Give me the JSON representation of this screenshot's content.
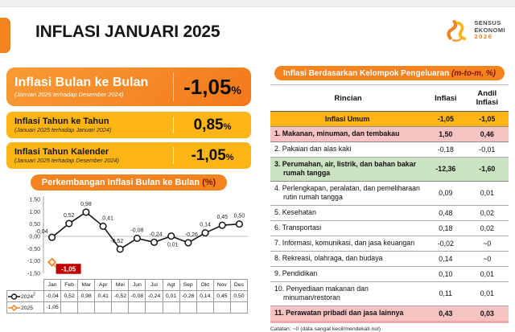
{
  "header": {
    "title": "INFLASI JANUARI 2025",
    "logo": {
      "line1": "SENSUS",
      "line2": "EKONOMI",
      "line3": "2026"
    }
  },
  "colors": {
    "accent_orange": "#F5831F",
    "accent_yellow": "#FDB515",
    "maroon_text": "#7E1416",
    "annotation_red": "#C00000",
    "row_pink": "#F6C2C2",
    "row_green": "#CBE3C3"
  },
  "summary_boxes": [
    {
      "title": "Inflasi Bulan ke Bulan",
      "subtitle": "(Januari 2025 terhadap Desember 2024)",
      "value": "-1,05",
      "unit": "%"
    },
    {
      "title": "Inflasi Tahun ke Tahun",
      "subtitle": "(Januari 2025 terhadap Januari 2024)",
      "value": "0,85",
      "unit": "%"
    },
    {
      "title": "Inflasi Tahun Kalender",
      "subtitle": "(Januari 2025 terhadap Desember 2024)",
      "value": "-1,05",
      "unit": "%"
    }
  ],
  "chart": {
    "title_main": "Perkembangan Inflasi Bulan ke Bulan",
    "title_unit": "(%)"
  },
  "chart_data": {
    "type": "line",
    "title": "Perkembangan Inflasi Bulan ke Bulan (%)",
    "categories": [
      "Jan",
      "Feb",
      "Mar",
      "Apr",
      "Mei",
      "Jun",
      "Jul",
      "Agt",
      "Sep",
      "Okt",
      "Nov",
      "Des"
    ],
    "series": [
      {
        "name": "2024",
        "name_sup": "2",
        "color": "#141414",
        "marker": "circle",
        "values": [
          -0.04,
          0.52,
          0.98,
          0.41,
          -0.52,
          -0.08,
          -0.24,
          0.01,
          -0.26,
          0.14,
          0.45,
          0.5
        ],
        "labels": [
          "-0,04",
          "0,52",
          "0,98",
          "0,41",
          "-0,52",
          "-0,08",
          "-0,24",
          "0,01",
          "-0,26",
          "0,14",
          "0,45",
          "0,50"
        ],
        "label_offsets": [
          [
            -5,
            -5,
            "end"
          ],
          [
            0,
            -8,
            "middle"
          ],
          [
            0,
            -8,
            "middle"
          ],
          [
            6,
            -8,
            "middle"
          ],
          [
            -4,
            -8,
            "middle"
          ],
          [
            0,
            -8,
            "middle"
          ],
          [
            2,
            -8,
            "middle"
          ],
          [
            2,
            13,
            "middle"
          ],
          [
            4,
            -8,
            "middle"
          ],
          [
            0,
            -8,
            "middle"
          ],
          [
            0,
            -8,
            "middle"
          ],
          [
            0,
            -8,
            "middle"
          ]
        ]
      },
      {
        "name": "2025",
        "name_sup": "",
        "color": "#E8821E",
        "marker": "diamond",
        "values": [
          -1.05,
          null,
          null,
          null,
          null,
          null,
          null,
          null,
          null,
          null,
          null,
          null
        ],
        "labels": [
          "-1,05",
          "",
          "",
          "",
          "",
          "",
          "",
          "",
          "",
          "",
          "",
          ""
        ],
        "label_offsets": []
      }
    ],
    "ylim": [
      -1.5,
      1.5
    ],
    "yticks": [
      "1,50",
      "1,00",
      "0,50",
      "0,00",
      "-0,50",
      "-1,00",
      "-1,50"
    ],
    "grid": "zero-line-only",
    "legend_position": "bottom-table",
    "annotation": {
      "text": "-1,05",
      "bg": "#C00000",
      "color": "#ffffff",
      "series": "2025",
      "index": 0
    }
  },
  "expenditure_table": {
    "title_main": "Inflasi Berdasarkan Kelompok Pengeluaran",
    "title_unit": "(m-to-m, %)",
    "columns": [
      "Rincian",
      "Inflasi",
      "Andil Inflasi"
    ],
    "summary_row": {
      "label": "Inflasi Umum",
      "inflasi": "-1,05",
      "andil": "-1,05"
    },
    "rows": [
      {
        "label": "1. Makanan, minuman, dan tembakau",
        "inflasi": "1,50",
        "andil": "0,46",
        "highlight": "pink"
      },
      {
        "label": "2. Pakaian dan alas kaki",
        "inflasi": "-0,18",
        "andil": "-0,01",
        "highlight": ""
      },
      {
        "label": "3. Perumahan, air, listrik, dan bahan bakar rumah tangga",
        "inflasi": "-12,36",
        "andil": "-1,60",
        "highlight": "green"
      },
      {
        "label": "4. Perlengkapan, peralatan, dan pemeliharaan rutin rumah tangga",
        "inflasi": "0,09",
        "andil": "0,01",
        "highlight": ""
      },
      {
        "label": "5. Kesehatan",
        "inflasi": "0,48",
        "andil": "0,02",
        "highlight": ""
      },
      {
        "label": "6. Transportasi",
        "inflasi": "0,18",
        "andil": "0,02",
        "highlight": ""
      },
      {
        "label": "7. Informasi, komunikasi, dan jasa keuangan",
        "inflasi": "-0,02",
        "andil": "~0",
        "highlight": ""
      },
      {
        "label": "8. Rekreasi, olahraga, dan budaya",
        "inflasi": "0,14",
        "andil": "~0",
        "highlight": ""
      },
      {
        "label": "9. Pendidikan",
        "inflasi": "0,10",
        "andil": "0,01",
        "highlight": ""
      },
      {
        "label": "10. Penyediaan makanan dan minuman/restoran",
        "inflasi": "0,11",
        "andil": "0,01",
        "highlight": ""
      },
      {
        "label": "11. Perawatan pribadi dan jasa lainnya",
        "inflasi": "0,43",
        "andil": "0,03",
        "highlight": "pink"
      }
    ],
    "note": "Catatan: ~0 (data sangat kecil/mendekati nol)"
  }
}
